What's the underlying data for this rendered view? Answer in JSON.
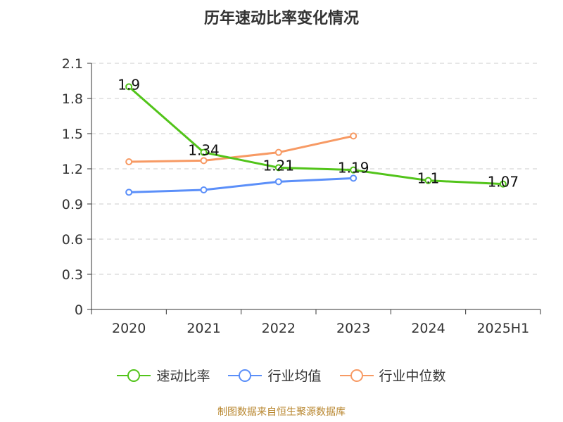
{
  "title": "历年速动比率变化情况",
  "source": "制图数据来自恒生聚源数据库",
  "chart_data": {
    "type": "line",
    "title": "历年速动比率变化情况",
    "categories": [
      "2020",
      "2021",
      "2022",
      "2023",
      "2024",
      "2025H1"
    ],
    "ylim": [
      0,
      2.1
    ],
    "yticks": [
      "0",
      "0.3",
      "0.6",
      "0.9",
      "1.2",
      "1.5",
      "1.8",
      "2.1"
    ],
    "grid": true,
    "legend_position": "bottom",
    "series": [
      {
        "name": "速动比率",
        "color": "#52c41a",
        "values": [
          1.9,
          1.34,
          1.21,
          1.19,
          1.1,
          1.07
        ],
        "labels": [
          "1.9",
          "1.34",
          "1.21",
          "1.19",
          "1.1",
          "1.07"
        ]
      },
      {
        "name": "行业均值",
        "color": "#5b8ff9",
        "values": [
          1.0,
          1.02,
          1.09,
          1.12,
          null,
          null
        ]
      },
      {
        "name": "行业中位数",
        "color": "#f79a64",
        "values": [
          1.26,
          1.27,
          1.34,
          1.48,
          null,
          null
        ]
      }
    ]
  }
}
